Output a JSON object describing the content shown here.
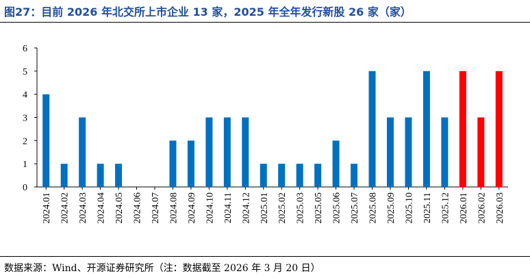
{
  "header": {
    "title": "图27：目前 2026 年北交所上市企业 13 家，2025 年全年发行新股 26 家（家）"
  },
  "footer": {
    "source": "数据来源：Wind、开源证券研究所（注：数据截至 2026 年 3 月 20 日）"
  },
  "colors": {
    "title": "#1f4e9c",
    "bar_default": "#0070c0",
    "bar_highlight": "#ff0000"
  },
  "chart_data": {
    "type": "bar",
    "title": "",
    "xlabel": "",
    "ylabel": "",
    "ylim": [
      0,
      6
    ],
    "yticks": [
      0,
      1,
      2,
      3,
      4,
      5,
      6
    ],
    "grid": false,
    "categories": [
      "2024.01",
      "2024.02",
      "2024.03",
      "2024.04",
      "2024.05",
      "2024.06",
      "2024.07",
      "2024.08",
      "2024.09",
      "2024.10",
      "2024.11",
      "2024.12",
      "2025.01",
      "2025.02",
      "2025.03",
      "2025.05",
      "2025.06",
      "2025.07",
      "2025.08",
      "2025.09",
      "2025.10",
      "2025.11",
      "2025.12",
      "2026.01",
      "2026.02",
      "2026.03"
    ],
    "values": [
      4,
      1,
      3,
      1,
      1,
      0,
      0,
      2,
      2,
      3,
      3,
      3,
      1,
      1,
      1,
      1,
      2,
      1,
      5,
      3,
      3,
      5,
      3,
      5,
      3,
      5
    ],
    "highlight_categories": [
      "2026.01",
      "2026.02",
      "2026.03"
    ]
  }
}
